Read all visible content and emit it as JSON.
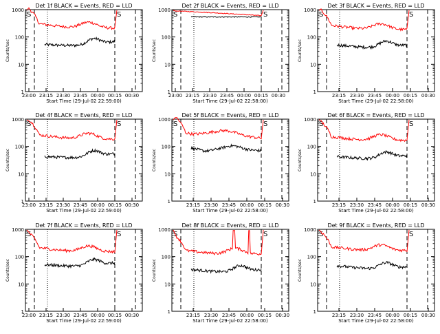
{
  "colors": {
    "background": "#ffffff",
    "axis": "#000000",
    "events": "#000000",
    "lld": "#ff0000"
  },
  "shared": {
    "ylabel": "Counts/sec",
    "ytick_labels": [
      "1",
      "10",
      "100",
      "1000"
    ],
    "saa_label": "S",
    "xlabel_a": "Start Time (29-Jul-02 22:59:00)",
    "xlabel_b": "Start Time (29-Jul-02 22:58:00)"
  },
  "chart_data": [
    {
      "type": "line",
      "title": "Det 1f BLACK = Events, RED = LLD",
      "xlabel": "Start Time (29-Jul-02 22:59:00)",
      "x_ticks": [
        "23:00",
        "23:15",
        "23:30",
        "23:45",
        "00:00",
        "00:15",
        "00:30"
      ],
      "ylim": [
        1,
        1000
      ],
      "yscale": "log",
      "series": [
        {
          "name": "Events",
          "shape": "typical",
          "start_level": 62,
          "end_level": 80
        },
        {
          "name": "LLD",
          "shape": "typical",
          "start_level": 400,
          "end_level": 250
        }
      ]
    },
    {
      "type": "line",
      "title": "Det 2f BLACK = Events, RED = LLD",
      "xlabel": "Start Time (29-Jul-02 22:58:00)",
      "x_ticks": [
        "23:00",
        "23:15",
        "23:30",
        "23:45",
        "00:00",
        "00:15",
        "00:30"
      ],
      "ylim": [
        1,
        1000
      ],
      "yscale": "log",
      "series": [
        {
          "name": "Events",
          "shape": "flat",
          "start_level": 540,
          "end_level": 540
        },
        {
          "name": "LLD",
          "shape": "flat",
          "start_level": 900,
          "end_level": 600
        }
      ]
    },
    {
      "type": "line",
      "title": "Det 3f BLACK = Events, RED = LLD",
      "xlabel": "Start Time (29-Jul-02 22:58:00)",
      "x_ticks": [
        "23:15",
        "23:30",
        "23:45",
        "00:00",
        "00:15",
        "00:30"
      ],
      "ylim": [
        1,
        1000
      ],
      "yscale": "log",
      "series": [
        {
          "name": "Events",
          "shape": "typical",
          "start_level": 60,
          "end_level": 60
        },
        {
          "name": "LLD",
          "shape": "typical",
          "start_level": 350,
          "end_level": 220
        }
      ]
    },
    {
      "type": "line",
      "title": "Det 4f BLACK = Events, RED = LLD",
      "xlabel": "Start Time (29-Jul-02 22:59:00)",
      "x_ticks": [
        "23:00",
        "23:15",
        "23:30",
        "23:45",
        "00:00",
        "00:15",
        "00:30"
      ],
      "ylim": [
        1,
        1000
      ],
      "yscale": "log",
      "series": [
        {
          "name": "Events",
          "shape": "typical",
          "start_level": 50,
          "end_level": 65
        },
        {
          "name": "LLD",
          "shape": "typical",
          "start_level": 350,
          "end_level": 220
        }
      ]
    },
    {
      "type": "line",
      "title": "Det 5f BLACK = Events, RED = LLD",
      "xlabel": "Start Time (29-Jul-02 22:58:00)",
      "x_ticks": [
        "23:15",
        "23:30",
        "23:45",
        "00:00",
        "00:15",
        "00:30"
      ],
      "ylim": [
        1,
        1000
      ],
      "yscale": "log",
      "series": [
        {
          "name": "Events",
          "shape": "smooth",
          "start_level": 90,
          "end_level": 70
        },
        {
          "name": "LLD",
          "shape": "smooth",
          "start_level": 400,
          "end_level": 200
        }
      ]
    },
    {
      "type": "line",
      "title": "Det 6f BLACK = Events, RED = LLD",
      "xlabel": "Start Time (29-Jul-02 22:58:00)",
      "x_ticks": [
        "23:15",
        "23:30",
        "23:45",
        "00:00",
        "00:15",
        "00:30"
      ],
      "ylim": [
        1,
        1000
      ],
      "yscale": "log",
      "series": [
        {
          "name": "Events",
          "shape": "typical",
          "start_level": 50,
          "end_level": 55
        },
        {
          "name": "LLD",
          "shape": "typical",
          "start_level": 300,
          "end_level": 200
        }
      ]
    },
    {
      "type": "line",
      "title": "Det 7f BLACK = Events, RED = LLD",
      "xlabel": "Start Time (29-Jul-02 22:59:00)",
      "x_ticks": [
        "23:00",
        "23:15",
        "23:30",
        "23:45",
        "00:00",
        "00:15",
        "00:30"
      ],
      "ylim": [
        1,
        1000
      ],
      "yscale": "log",
      "series": [
        {
          "name": "Events",
          "shape": "typical",
          "start_level": 60,
          "end_level": 70
        },
        {
          "name": "LLD",
          "shape": "typical",
          "start_level": 280,
          "end_level": 180
        }
      ]
    },
    {
      "type": "line",
      "title": "Det 8f BLACK = Events, RED = LLD",
      "xlabel": "Start Time (29-Jul-02 22:58:00)",
      "x_ticks": [
        "23:15",
        "23:30",
        "23:45",
        "00:00",
        "00:15",
        "00:30"
      ],
      "ylim": [
        1,
        1000
      ],
      "yscale": "log",
      "series": [
        {
          "name": "Events",
          "shape": "typical",
          "start_level": 40,
          "end_level": 40
        },
        {
          "name": "LLD",
          "shape": "spiky",
          "start_level": 220,
          "end_level": 150
        }
      ]
    },
    {
      "type": "line",
      "title": "Det 9f BLACK = Events, RED = LLD",
      "xlabel": "Start Time (29-Jul-02 22:58:00)",
      "x_ticks": [
        "23:15",
        "23:30",
        "23:45",
        "00:00",
        "00:15",
        "00:30"
      ],
      "ylim": [
        1,
        1000
      ],
      "yscale": "log",
      "series": [
        {
          "name": "Events",
          "shape": "typical",
          "start_level": 55,
          "end_level": 50
        },
        {
          "name": "LLD",
          "shape": "typical",
          "start_level": 300,
          "end_level": 200
        }
      ]
    }
  ]
}
